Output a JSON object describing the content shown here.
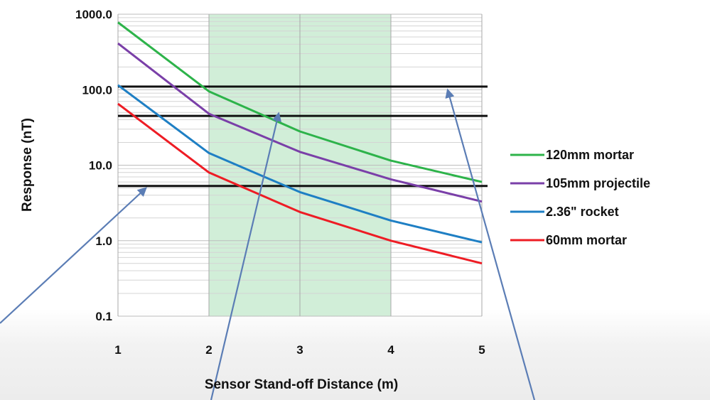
{
  "chart_data": {
    "type": "line",
    "title": "",
    "xlabel": "Sensor Stand-off Distance (m)",
    "ylabel": "Response (nT)",
    "x_scale": "linear",
    "y_scale": "log",
    "xlim": [
      1,
      5
    ],
    "ylim": [
      0.1,
      1000
    ],
    "x_ticks": [
      "1",
      "2",
      "3",
      "4",
      "5"
    ],
    "y_ticks": [
      "0.1",
      "1.0",
      "10.0",
      "100.0",
      "1000.0"
    ],
    "x": [
      1,
      2,
      3,
      4,
      5
    ],
    "grid": true,
    "legend_position": "right",
    "series": [
      {
        "name": "120mm mortar",
        "color": "#2db34a",
        "values": [
          780,
          95,
          28,
          11.5,
          6
        ]
      },
      {
        "name": "105mm projectile",
        "color": "#7a3fa8",
        "values": [
          410,
          48,
          15,
          6.5,
          3.3
        ]
      },
      {
        "name": "2.36\" rocket",
        "color": "#1e7fc4",
        "values": [
          115,
          14.5,
          4.4,
          1.85,
          0.95
        ]
      },
      {
        "name": "60mm mortar",
        "color": "#ee1c24",
        "values": [
          65,
          8,
          2.4,
          1.0,
          0.5
        ]
      }
    ],
    "threshold_lines": [
      110,
      45,
      5.3
    ],
    "shaded_region": {
      "x_from": 2,
      "x_to": 4,
      "color": "#c9ebd1"
    }
  }
}
